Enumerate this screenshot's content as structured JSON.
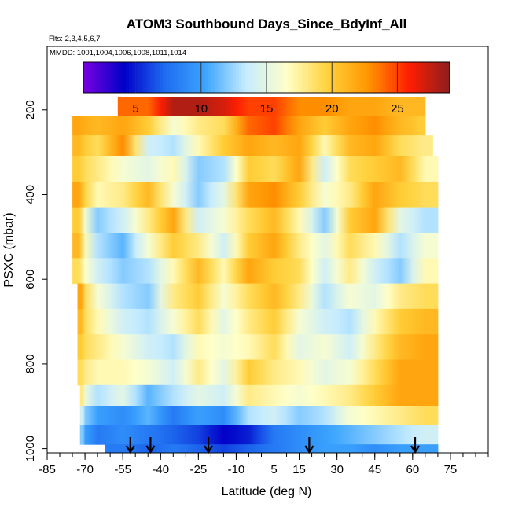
{
  "chart_data": {
    "type": "heatmap",
    "title": "ATOM3 Southbound Days_Since_BdyInf_All",
    "subtitle_flights": "Flts: 2,3,4,5,6,7",
    "subtitle_dates": "MMDD: 1001,1004,1006,1008,1011,1014",
    "xlabel": "Latitude (deg N)",
    "ylabel": "PSXC (mbar)",
    "xlim": [
      -85,
      90
    ],
    "ylim": [
      1010,
      50
    ],
    "x_tick_labels": [
      "-85",
      "-70",
      "-55",
      "-40",
      "-25",
      "-10",
      "5",
      "15",
      "30",
      "45",
      "60",
      "75"
    ],
    "x_tick_values": [
      -85,
      -70,
      -55,
      -40,
      -25,
      -10,
      5,
      15,
      30,
      45,
      60,
      75
    ],
    "y_tick_labels": [
      "200",
      "400",
      "600",
      "800",
      "1000"
    ],
    "y_tick_values": [
      200,
      400,
      600,
      800,
      1000
    ],
    "colorbar": {
      "range": [
        1,
        29
      ],
      "tick_labels": [
        "5",
        "10",
        "15",
        "20",
        "25"
      ],
      "tick_values": [
        5,
        10,
        15,
        20,
        25
      ],
      "colors": [
        "#7a00e0",
        "#0000c8",
        "#1e6cf0",
        "#3ca5ff",
        "#c6ecff",
        "#ffffc8",
        "#ffd23c",
        "#ff9600",
        "#ff1e00",
        "#8c1e1e"
      ]
    },
    "arrow_latitudes": [
      -52,
      -44,
      -21,
      19,
      61
    ],
    "lat_bins": [
      -75,
      -65,
      -55,
      -45,
      -35,
      -25,
      -15,
      -5,
      5,
      15,
      25,
      35,
      45,
      55,
      65
    ],
    "pressure_bands": [
      {
        "p_top": 170,
        "p_bottom": 215,
        "lat_min": -57,
        "lat_max": 65,
        "values": [
          24,
          24,
          24,
          24,
          28,
          28,
          27,
          25,
          25,
          23,
          23,
          22,
          22,
          21,
          21
        ]
      },
      {
        "p_top": 215,
        "p_bottom": 260,
        "lat_min": -75,
        "lat_max": 65,
        "values": [
          22,
          21,
          22,
          20,
          16,
          18,
          19,
          24,
          25,
          22,
          20,
          22,
          23,
          21,
          20
        ]
      },
      {
        "p_top": 260,
        "p_bottom": 310,
        "lat_min": -75,
        "lat_max": 68,
        "values": [
          21,
          19,
          23,
          14,
          13,
          17,
          20,
          22,
          21,
          22,
          17,
          21,
          22,
          19,
          18
        ]
      },
      {
        "p_top": 310,
        "p_bottom": 370,
        "lat_min": -75,
        "lat_max": 70,
        "values": [
          20,
          18,
          16,
          15,
          17,
          12,
          13,
          20,
          19,
          22,
          14,
          19,
          20,
          21,
          17
        ]
      },
      {
        "p_top": 370,
        "p_bottom": 430,
        "lat_min": -75,
        "lat_max": 70,
        "values": [
          22,
          17,
          18,
          21,
          16,
          12,
          15,
          22,
          23,
          20,
          16,
          18,
          22,
          20,
          19
        ]
      },
      {
        "p_top": 430,
        "p_bottom": 490,
        "lat_min": -75,
        "lat_max": 70,
        "values": [
          20,
          12,
          14,
          18,
          22,
          14,
          16,
          19,
          21,
          17,
          12,
          20,
          22,
          15,
          13
        ]
      },
      {
        "p_top": 490,
        "p_bottom": 550,
        "lat_min": -75,
        "lat_max": 70,
        "values": [
          21,
          13,
          11,
          16,
          20,
          18,
          14,
          20,
          22,
          18,
          15,
          19,
          17,
          13,
          16
        ]
      },
      {
        "p_top": 550,
        "p_bottom": 610,
        "lat_min": -75,
        "lat_max": 70,
        "values": [
          19,
          14,
          12,
          13,
          17,
          21,
          17,
          22,
          20,
          19,
          14,
          18,
          14,
          12,
          17
        ]
      },
      {
        "p_top": 610,
        "p_bottom": 670,
        "lat_min": -73,
        "lat_max": 70,
        "values": [
          22,
          16,
          13,
          12,
          18,
          20,
          16,
          19,
          21,
          18,
          13,
          16,
          15,
          18,
          19
        ]
      },
      {
        "p_top": 670,
        "p_bottom": 730,
        "lat_min": -73,
        "lat_max": 70,
        "values": [
          21,
          17,
          14,
          13,
          16,
          19,
          15,
          18,
          20,
          16,
          14,
          13,
          17,
          20,
          21
        ]
      },
      {
        "p_top": 730,
        "p_bottom": 790,
        "lat_min": -73,
        "lat_max": 70,
        "values": [
          20,
          18,
          16,
          14,
          13,
          17,
          16,
          17,
          19,
          15,
          16,
          14,
          18,
          21,
          22
        ]
      },
      {
        "p_top": 790,
        "p_bottom": 850,
        "lat_min": -73,
        "lat_max": 70,
        "values": [
          19,
          17,
          17,
          16,
          14,
          18,
          15,
          20,
          18,
          17,
          15,
          16,
          19,
          22,
          22
        ]
      },
      {
        "p_top": 850,
        "p_bottom": 900,
        "lat_min": -72,
        "lat_max": 70,
        "values": [
          18,
          13,
          15,
          11,
          13,
          15,
          14,
          18,
          17,
          16,
          17,
          18,
          20,
          22,
          22
        ]
      },
      {
        "p_top": 900,
        "p_bottom": 945,
        "lat_min": -72,
        "lat_max": 70,
        "values": [
          14,
          10,
          9,
          11,
          8,
          10,
          9,
          13,
          14,
          12,
          13,
          16,
          17,
          18,
          19
        ]
      },
      {
        "p_top": 945,
        "p_bottom": 990,
        "lat_min": -72,
        "lat_max": 70,
        "values": [
          12,
          8,
          9,
          8,
          7,
          6,
          4,
          5,
          8,
          9,
          10,
          11,
          12,
          13,
          14
        ]
      },
      {
        "p_top": 990,
        "p_bottom": 1010,
        "lat_min": -62,
        "lat_max": 70,
        "values": [
          9,
          8,
          8,
          7,
          8,
          7,
          6,
          7,
          8,
          9,
          10,
          10,
          9,
          10,
          10
        ]
      }
    ]
  }
}
